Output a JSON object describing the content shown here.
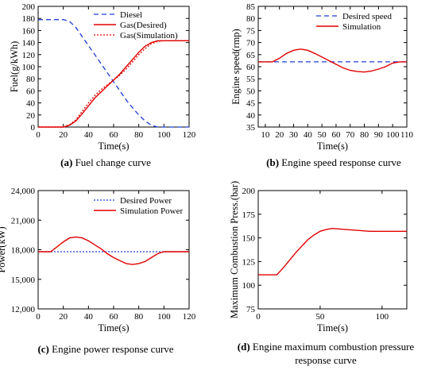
{
  "chart_data": [
    {
      "type": "line",
      "panel": "a",
      "xlabel": "Time(s)",
      "ylabel": "Fuel(g/kWh)",
      "xlim": [
        0,
        120
      ],
      "ylim": [
        0,
        200
      ],
      "xticks": [
        "0",
        "20",
        "40",
        "60",
        "80",
        "100",
        "120"
      ],
      "yticks": [
        "0",
        "20",
        "40",
        "60",
        "80",
        "100",
        "120",
        "140",
        "160",
        "180",
        "200"
      ],
      "legend_position": "top-right",
      "series": [
        {
          "name": "Diesel",
          "color": "#1f3fd6",
          "style": "dashed",
          "x": [
            0,
            20,
            25,
            30,
            35,
            40,
            45,
            50,
            55,
            60,
            65,
            70,
            75,
            80,
            85,
            90,
            95,
            100,
            105,
            120
          ],
          "y": [
            178,
            178,
            175,
            165,
            150,
            135,
            120,
            105,
            90,
            75,
            60,
            45,
            32,
            20,
            10,
            3,
            0,
            0,
            0,
            0
          ]
        },
        {
          "name": "Gas(Desired)",
          "color": "#e00000",
          "style": "solid",
          "x": [
            0,
            20,
            25,
            30,
            35,
            40,
            45,
            50,
            55,
            60,
            65,
            70,
            75,
            80,
            85,
            90,
            95,
            100,
            105,
            120
          ],
          "y": [
            0,
            0,
            3,
            10,
            22,
            35,
            48,
            58,
            68,
            78,
            88,
            100,
            112,
            124,
            134,
            140,
            143,
            143,
            143,
            143
          ]
        },
        {
          "name": "Gas(Simulation)",
          "color": "#e00000",
          "style": "dotted",
          "x": [
            0,
            20,
            25,
            30,
            35,
            40,
            45,
            50,
            55,
            60,
            65,
            70,
            75,
            80,
            85,
            90,
            95,
            100,
            105,
            120
          ],
          "y": [
            0,
            0,
            4,
            12,
            26,
            40,
            52,
            62,
            70,
            78,
            86,
            96,
            108,
            120,
            130,
            138,
            142,
            143,
            143,
            143
          ]
        }
      ],
      "caption_label": "(a)",
      "caption_text": "Fuel change curve"
    },
    {
      "type": "line",
      "panel": "b",
      "xlabel": "Time(s)",
      "ylabel": "Engine speed(rmp)",
      "xlim": [
        5,
        110
      ],
      "ylim": [
        35,
        85
      ],
      "xticks": [
        "10",
        "20",
        "30",
        "40",
        "50",
        "60",
        "70",
        "80",
        "90",
        "100",
        "110"
      ],
      "yticks": [
        "35",
        "40",
        "45",
        "50",
        "55",
        "60",
        "65",
        "70",
        "75",
        "80",
        "85"
      ],
      "legend_position": "top-right",
      "series": [
        {
          "name": "Desired speed",
          "color": "#1f3fd6",
          "style": "dashed",
          "x": [
            5,
            110
          ],
          "y": [
            62,
            62
          ]
        },
        {
          "name": "Simulation",
          "color": "#e00000",
          "style": "solid",
          "x": [
            5,
            15,
            20,
            25,
            30,
            35,
            40,
            45,
            50,
            55,
            60,
            65,
            70,
            75,
            80,
            85,
            90,
            95,
            100,
            105,
            110
          ],
          "y": [
            62,
            62,
            63.5,
            65.5,
            66.8,
            67.3,
            66.8,
            65.5,
            64,
            62.5,
            61,
            59.5,
            58.5,
            58,
            57.8,
            58.2,
            59,
            60,
            61.5,
            62,
            62
          ]
        }
      ],
      "caption_label": "(b)",
      "caption_text": "Engine speed response curve"
    },
    {
      "type": "line",
      "panel": "c",
      "xlabel": "Time(s)",
      "ylabel": "Power(kW)",
      "xlim": [
        0,
        120
      ],
      "ylim": [
        12000,
        24000
      ],
      "xticks": [
        "0",
        "20",
        "40",
        "60",
        "80",
        "100",
        "120"
      ],
      "yticks": [
        "12,000",
        "15,000",
        "18,000",
        "21,000",
        "24,000"
      ],
      "legend_position": "top-right",
      "series": [
        {
          "name": "Desired Power",
          "color": "#1f3fd6",
          "style": "dotted",
          "x": [
            0,
            120
          ],
          "y": [
            17800,
            17800
          ]
        },
        {
          "name": "Simulation Power",
          "color": "#e00000",
          "style": "solid",
          "x": [
            0,
            10,
            15,
            20,
            25,
            30,
            35,
            40,
            45,
            50,
            55,
            60,
            65,
            70,
            75,
            80,
            85,
            90,
            95,
            100,
            120
          ],
          "y": [
            17800,
            17800,
            18300,
            18800,
            19200,
            19300,
            19200,
            18900,
            18500,
            18100,
            17600,
            17200,
            16900,
            16600,
            16500,
            16600,
            16800,
            17200,
            17600,
            17800,
            17800
          ]
        }
      ],
      "caption_label": "(c)",
      "caption_text": "Engine power response curve"
    },
    {
      "type": "line",
      "panel": "d",
      "xlabel": "Time(s)",
      "ylabel": "Maximum Combustion Press.(bar)",
      "xlim": [
        0,
        120
      ],
      "ylim": [
        75,
        200
      ],
      "xticks": [
        "0",
        "50",
        "100"
      ],
      "yticks": [
        "75",
        "100",
        "125",
        "150",
        "175",
        "200"
      ],
      "series": [
        {
          "color": "#e00000",
          "style": "solid",
          "x": [
            0,
            15,
            20,
            25,
            30,
            35,
            40,
            45,
            50,
            55,
            60,
            65,
            70,
            80,
            90,
            100,
            120
          ],
          "y": [
            111,
            111,
            118,
            126,
            134,
            141,
            148,
            153,
            157,
            159,
            160,
            159.5,
            159,
            158,
            157,
            157,
            157
          ]
        }
      ],
      "caption_label": "(d)",
      "caption_text": "Engine maximum combustion pressure response curve",
      "caption_line1": "Engine maximum combustion pressure",
      "caption_line2": "response curve"
    }
  ]
}
